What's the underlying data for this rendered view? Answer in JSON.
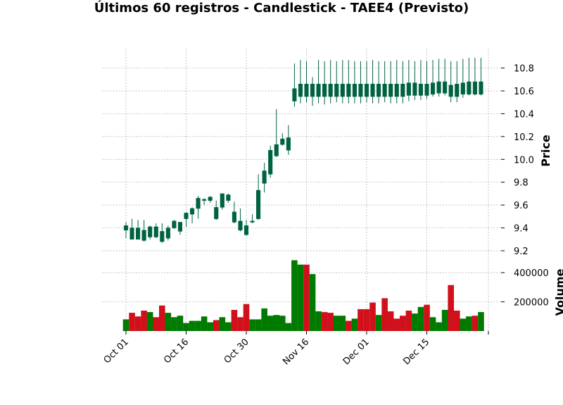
{
  "chart_data": {
    "type": "candlestick",
    "title": "Últimos 60 registros - Candlestick - TAEE4 (Previsto)",
    "ylabel": "Price",
    "volume_label": "Volume",
    "ylim": [
      9.2,
      10.97
    ],
    "volume_ylim": [
      0,
      550000
    ],
    "x_tick_labels": [
      "Oct 01",
      "Oct 16",
      "Oct 30",
      "Nov 16",
      "Dec 01",
      "Dec 15"
    ],
    "x_tick_index": [
      0,
      10,
      20,
      30,
      40,
      50
    ],
    "y_ticks": [
      9.2,
      9.4,
      9.6,
      9.8,
      10.0,
      10.2,
      10.4,
      10.6,
      10.8
    ],
    "y_tick_labels": [
      "9.2",
      "9.4",
      "9.6",
      "9.8",
      "10.0",
      "10.2",
      "10.4",
      "10.6",
      "10.8"
    ],
    "volume_ticks": [
      200000,
      400000
    ],
    "volume_tick_labels": [
      "200000",
      "400000"
    ],
    "grid": true,
    "colors": {
      "up": "#006340",
      "down_wick": "#006340",
      "volume_up": "#007a00",
      "volume_down": "#d0111c",
      "grid": "#b0b0b0"
    },
    "candles": [
      {
        "o": 9.38,
        "h": 9.45,
        "l": 9.31,
        "c": 9.42,
        "v": 80000,
        "up": true
      },
      {
        "o": 9.4,
        "h": 9.48,
        "l": 9.3,
        "c": 9.3,
        "v": 125000,
        "up": false
      },
      {
        "o": 9.4,
        "h": 9.47,
        "l": 9.3,
        "c": 9.3,
        "v": 100000,
        "up": false
      },
      {
        "o": 9.38,
        "h": 9.47,
        "l": 9.28,
        "c": 9.29,
        "v": 140000,
        "up": false
      },
      {
        "o": 9.32,
        "h": 9.42,
        "l": 9.3,
        "c": 9.41,
        "v": 130000,
        "up": true
      },
      {
        "o": 9.41,
        "h": 9.44,
        "l": 9.31,
        "c": 9.32,
        "v": 95000,
        "up": false
      },
      {
        "o": 9.37,
        "h": 9.44,
        "l": 9.27,
        "c": 9.28,
        "v": 175000,
        "up": false
      },
      {
        "o": 9.31,
        "h": 9.42,
        "l": 9.29,
        "c": 9.4,
        "v": 125000,
        "up": true
      },
      {
        "o": 9.4,
        "h": 9.47,
        "l": 9.39,
        "c": 9.46,
        "v": 95000,
        "up": true
      },
      {
        "o": 9.37,
        "h": 9.45,
        "l": 9.34,
        "c": 9.45,
        "v": 105000,
        "up": true
      },
      {
        "o": 9.48,
        "h": 9.54,
        "l": 9.41,
        "c": 9.53,
        "v": 55000,
        "up": true
      },
      {
        "o": 9.52,
        "h": 9.58,
        "l": 9.44,
        "c": 9.57,
        "v": 70000,
        "up": true
      },
      {
        "o": 9.57,
        "h": 9.68,
        "l": 9.48,
        "c": 9.66,
        "v": 70000,
        "up": true
      },
      {
        "o": 9.64,
        "h": 9.66,
        "l": 9.6,
        "c": 9.65,
        "v": 100000,
        "up": true
      },
      {
        "o": 9.64,
        "h": 9.68,
        "l": 9.62,
        "c": 9.67,
        "v": 60000,
        "up": true
      },
      {
        "o": 9.58,
        "h": 9.64,
        "l": 9.47,
        "c": 9.48,
        "v": 75000,
        "up": false
      },
      {
        "o": 9.58,
        "h": 9.7,
        "l": 9.56,
        "c": 9.7,
        "v": 95000,
        "up": true
      },
      {
        "o": 9.64,
        "h": 9.7,
        "l": 9.62,
        "c": 9.69,
        "v": 60000,
        "up": true
      },
      {
        "o": 9.54,
        "h": 9.63,
        "l": 9.44,
        "c": 9.45,
        "v": 145000,
        "up": false
      },
      {
        "o": 9.46,
        "h": 9.57,
        "l": 9.37,
        "c": 9.38,
        "v": 95000,
        "up": false
      },
      {
        "o": 9.42,
        "h": 9.47,
        "l": 9.33,
        "c": 9.34,
        "v": 185000,
        "up": false
      },
      {
        "o": 9.45,
        "h": 9.52,
        "l": 9.44,
        "c": 9.46,
        "v": 80000,
        "up": true
      },
      {
        "o": 9.48,
        "h": 9.87,
        "l": 9.47,
        "c": 9.73,
        "v": 80000,
        "up": true
      },
      {
        "o": 9.79,
        "h": 9.97,
        "l": 9.71,
        "c": 9.9,
        "v": 155000,
        "up": true
      },
      {
        "o": 9.87,
        "h": 10.12,
        "l": 9.84,
        "c": 10.08,
        "v": 105000,
        "up": true
      },
      {
        "o": 10.03,
        "h": 10.44,
        "l": 10.02,
        "c": 10.13,
        "v": 110000,
        "up": true
      },
      {
        "o": 10.13,
        "h": 10.23,
        "l": 10.12,
        "c": 10.18,
        "v": 105000,
        "up": true
      },
      {
        "o": 10.08,
        "h": 10.3,
        "l": 10.04,
        "c": 10.19,
        "v": 55000,
        "up": true
      },
      {
        "o": 10.51,
        "h": 10.84,
        "l": 10.46,
        "c": 10.62,
        "v": 485000,
        "up": true
      },
      {
        "o": 10.55,
        "h": 10.87,
        "l": 10.49,
        "c": 10.66,
        "v": 455000,
        "up": true
      },
      {
        "o": 10.66,
        "h": 10.86,
        "l": 10.5,
        "c": 10.55,
        "v": 455000,
        "up": false
      },
      {
        "o": 10.55,
        "h": 10.72,
        "l": 10.47,
        "c": 10.66,
        "v": 390000,
        "up": true
      },
      {
        "o": 10.55,
        "h": 10.87,
        "l": 10.49,
        "c": 10.66,
        "v": 135000,
        "up": true
      },
      {
        "o": 10.66,
        "h": 10.86,
        "l": 10.48,
        "c": 10.55,
        "v": 130000,
        "up": false
      },
      {
        "o": 10.55,
        "h": 10.87,
        "l": 10.49,
        "c": 10.66,
        "v": 125000,
        "up": false
      },
      {
        "o": 10.55,
        "h": 10.86,
        "l": 10.5,
        "c": 10.66,
        "v": 105000,
        "up": true
      },
      {
        "o": 10.66,
        "h": 10.87,
        "l": 10.49,
        "c": 10.55,
        "v": 105000,
        "up": true
      },
      {
        "o": 10.55,
        "h": 10.87,
        "l": 10.49,
        "c": 10.66,
        "v": 70000,
        "up": false
      },
      {
        "o": 10.55,
        "h": 10.86,
        "l": 10.49,
        "c": 10.66,
        "v": 85000,
        "up": true
      },
      {
        "o": 10.66,
        "h": 10.86,
        "l": 10.49,
        "c": 10.55,
        "v": 150000,
        "up": false
      },
      {
        "o": 10.55,
        "h": 10.86,
        "l": 10.5,
        "c": 10.66,
        "v": 150000,
        "up": false
      },
      {
        "o": 10.55,
        "h": 10.87,
        "l": 10.49,
        "c": 10.66,
        "v": 195000,
        "up": false
      },
      {
        "o": 10.66,
        "h": 10.86,
        "l": 10.49,
        "c": 10.55,
        "v": 110000,
        "up": true
      },
      {
        "o": 10.55,
        "h": 10.86,
        "l": 10.5,
        "c": 10.66,
        "v": 225000,
        "up": false
      },
      {
        "o": 10.66,
        "h": 10.86,
        "l": 10.49,
        "c": 10.55,
        "v": 135000,
        "up": false
      },
      {
        "o": 10.55,
        "h": 10.87,
        "l": 10.49,
        "c": 10.66,
        "v": 85000,
        "up": false
      },
      {
        "o": 10.55,
        "h": 10.86,
        "l": 10.49,
        "c": 10.66,
        "v": 105000,
        "up": false
      },
      {
        "o": 10.56,
        "h": 10.87,
        "l": 10.51,
        "c": 10.67,
        "v": 140000,
        "up": false
      },
      {
        "o": 10.67,
        "h": 10.86,
        "l": 10.52,
        "c": 10.56,
        "v": 120000,
        "up": true
      },
      {
        "o": 10.56,
        "h": 10.87,
        "l": 10.52,
        "c": 10.66,
        "v": 165000,
        "up": true
      },
      {
        "o": 10.66,
        "h": 10.86,
        "l": 10.53,
        "c": 10.56,
        "v": 180000,
        "up": false
      },
      {
        "o": 10.57,
        "h": 10.87,
        "l": 10.55,
        "c": 10.67,
        "v": 95000,
        "up": true
      },
      {
        "o": 10.58,
        "h": 10.88,
        "l": 10.55,
        "c": 10.68,
        "v": 60000,
        "up": true
      },
      {
        "o": 10.68,
        "h": 10.88,
        "l": 10.56,
        "c": 10.58,
        "v": 145000,
        "up": true
      },
      {
        "o": 10.65,
        "h": 10.86,
        "l": 10.5,
        "c": 10.55,
        "v": 315000,
        "up": false
      },
      {
        "o": 10.55,
        "h": 10.86,
        "l": 10.5,
        "c": 10.66,
        "v": 140000,
        "up": false
      },
      {
        "o": 10.57,
        "h": 10.88,
        "l": 10.54,
        "c": 10.67,
        "v": 85000,
        "up": true
      },
      {
        "o": 10.57,
        "h": 10.89,
        "l": 10.56,
        "c": 10.68,
        "v": 100000,
        "up": true
      },
      {
        "o": 10.68,
        "h": 10.89,
        "l": 10.56,
        "c": 10.57,
        "v": 105000,
        "up": false
      },
      {
        "o": 10.57,
        "h": 10.89,
        "l": 10.56,
        "c": 10.68,
        "v": 130000,
        "up": true
      }
    ]
  }
}
